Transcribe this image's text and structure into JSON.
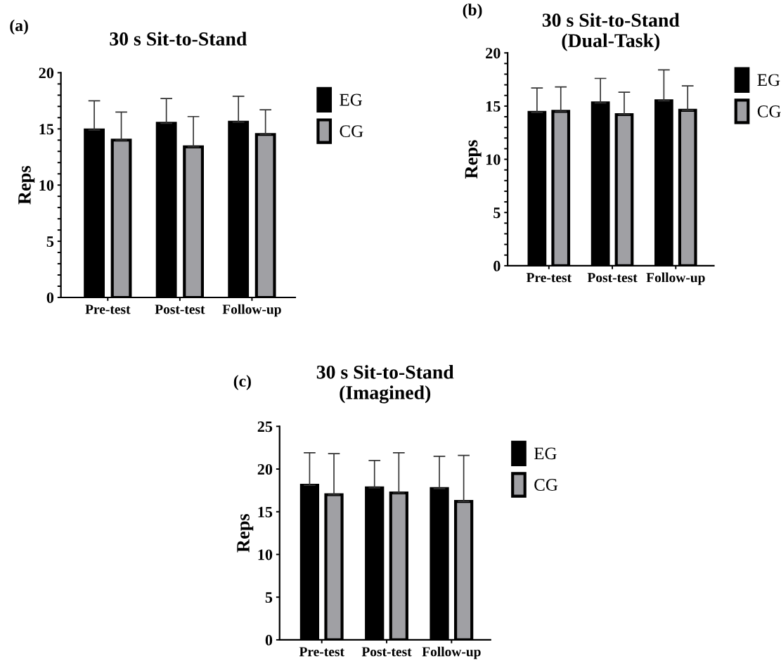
{
  "chart_data": [
    {
      "type": "bar",
      "title": "30 s Sit-to-Stand",
      "ylabel": "Reps",
      "annotations": [
        "(a)"
      ],
      "categories": [
        "Pre-test",
        "Post-test",
        "Follow-up"
      ],
      "series": [
        {
          "name": "EG",
          "color": "#000000",
          "values": [
            14.9,
            15.5,
            15.6
          ],
          "errors": [
            [
              14.9,
              17.5
            ],
            [
              15.5,
              17.7
            ],
            [
              15.6,
              17.9
            ]
          ]
        },
        {
          "name": "CG",
          "color": "#a0a0a4",
          "values": [
            14.0,
            13.4,
            14.5
          ],
          "errors": [
            [
              14.0,
              16.5
            ],
            [
              13.4,
              16.1
            ],
            [
              14.5,
              16.7
            ]
          ]
        }
      ],
      "ylim": [
        0,
        20
      ],
      "yticks": [
        0,
        {
          "value": 1,
          "label": null
        },
        {
          "value": 2,
          "label": null
        },
        {
          "value": 3,
          "label": null
        },
        {
          "value": 4,
          "label": null
        },
        5,
        {
          "value": 6,
          "label": null
        },
        {
          "value": 7,
          "label": null
        },
        {
          "value": 8,
          "label": null
        },
        {
          "value": 9,
          "label": null
        },
        10,
        {
          "value": 11,
          "label": null
        },
        {
          "value": 12,
          "label": null
        },
        {
          "value": 13,
          "label": null
        },
        {
          "value": 14,
          "label": null
        },
        15,
        {
          "value": 16,
          "label": null
        },
        {
          "value": 17,
          "label": null
        },
        {
          "value": 18,
          "label": null
        },
        {
          "value": 19,
          "label": null
        },
        20
      ],
      "legend": "top right",
      "grid": false
    },
    {
      "type": "bar",
      "title": "30 s Sit-to-Stand\n(Dual-Task)",
      "ylabel": "Reps",
      "annotations": [
        "(b)"
      ],
      "categories": [
        "Pre-test",
        "Post-test",
        "Follow-up"
      ],
      "series": [
        {
          "name": "EG",
          "color": "#000000",
          "values": [
            14.4,
            15.3,
            15.5
          ],
          "errors": [
            [
              14.4,
              16.7
            ],
            [
              15.3,
              17.6
            ],
            [
              15.5,
              18.4
            ]
          ]
        },
        {
          "name": "CG",
          "color": "#a0a0a4",
          "values": [
            14.5,
            14.2,
            14.6
          ],
          "errors": [
            [
              14.5,
              16.8
            ],
            [
              14.2,
              16.3
            ],
            [
              14.6,
              16.9
            ]
          ]
        }
      ],
      "ylim": [
        0,
        20
      ],
      "yticks": [
        0,
        {
          "value": 1,
          "label": null
        },
        {
          "value": 2,
          "label": null
        },
        {
          "value": 3,
          "label": null
        },
        {
          "value": 4,
          "label": null
        },
        5,
        {
          "value": 6,
          "label": null
        },
        {
          "value": 7,
          "label": null
        },
        {
          "value": 8,
          "label": null
        },
        {
          "value": 9,
          "label": null
        },
        10,
        {
          "value": 11,
          "label": null
        },
        {
          "value": 12,
          "label": null
        },
        {
          "value": 13,
          "label": null
        },
        {
          "value": 14,
          "label": null
        },
        15,
        {
          "value": 16,
          "label": null
        },
        {
          "value": 17,
          "label": null
        },
        {
          "value": 18,
          "label": null
        },
        {
          "value": 19,
          "label": null
        },
        20
      ],
      "legend": "top right",
      "grid": false
    },
    {
      "type": "bar",
      "title": "30 s Sit-to-Stand\n(Imagined)",
      "ylabel": "Reps",
      "annotations": [
        "(c)"
      ],
      "categories": [
        "Pre-test",
        "Post-test",
        "Follow-up"
      ],
      "series": [
        {
          "name": "EG",
          "color": "#000000",
          "values": [
            18.1,
            17.8,
            17.7
          ],
          "errors": [
            [
              18.1,
              21.9
            ],
            [
              17.8,
              21.0
            ],
            [
              17.7,
              21.5
            ]
          ]
        },
        {
          "name": "CG",
          "color": "#a0a0a4",
          "values": [
            17.0,
            17.2,
            16.2
          ],
          "errors": [
            [
              17.0,
              21.8
            ],
            [
              17.2,
              21.9
            ],
            [
              16.2,
              21.6
            ]
          ]
        }
      ],
      "ylim": [
        0,
        25
      ],
      "yticks": [
        0,
        5,
        10,
        15,
        20,
        25
      ],
      "legend": "top right",
      "grid": false
    }
  ]
}
